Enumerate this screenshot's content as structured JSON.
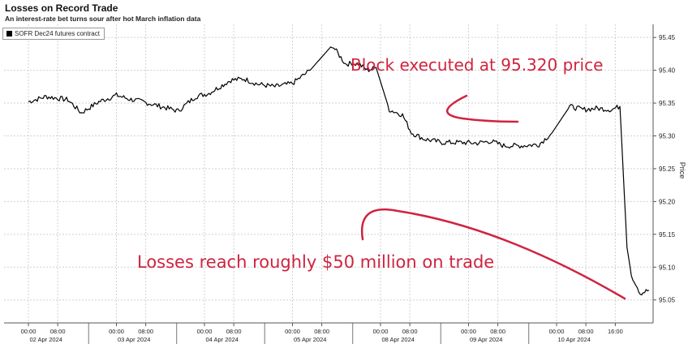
{
  "header": {
    "title": "Losses on Record Trade",
    "subtitle": "An interest-rate bet turns sour after hot March inflation data"
  },
  "chart_data": {
    "type": "line",
    "title": "Losses on Record Trade",
    "subtitle": "An interest-rate bet turns sour after hot March inflation data",
    "xlabel": "",
    "ylabel": "Price",
    "ylim": [
      95.015,
      95.47
    ],
    "yticks": [
      "95.05",
      "95.10",
      "95.15",
      "95.20",
      "95.25",
      "95.30",
      "95.35",
      "95.40",
      "95.45"
    ],
    "grid": true,
    "legend_position": "top-left",
    "series": [
      {
        "name": "SOFR Dec24 futures contract",
        "color": "#000000",
        "x": [
          0,
          0.2,
          0.45,
          0.6,
          0.8,
          1.0,
          1.15,
          1.3,
          1.5,
          1.7,
          1.9,
          2.05,
          2.3,
          2.45,
          2.6,
          2.8,
          3.0,
          3.2,
          3.45,
          3.6,
          3.75,
          3.85,
          3.95,
          4.1,
          4.25,
          4.35,
          4.5,
          4.7,
          4.9,
          5.1,
          5.25,
          5.4,
          5.6,
          5.8,
          5.95,
          6.15,
          6.3,
          6.45,
          6.55,
          6.62,
          6.72,
          6.8,
          6.85,
          6.9,
          6.95,
          7.05
        ],
        "values": [
          95.352,
          95.36,
          95.355,
          95.335,
          95.352,
          95.362,
          95.356,
          95.352,
          95.345,
          95.338,
          95.36,
          95.365,
          95.385,
          95.387,
          95.379,
          95.375,
          95.38,
          95.4,
          95.438,
          95.41,
          95.41,
          95.4,
          95.404,
          95.34,
          95.332,
          95.305,
          95.295,
          95.29,
          95.29,
          95.289,
          95.292,
          95.285,
          95.285,
          95.287,
          95.305,
          95.345,
          95.34,
          95.342,
          95.341,
          95.34,
          95.345,
          95.13,
          95.088,
          95.075,
          95.06,
          95.065
        ]
      }
    ],
    "x_tick_times": [
      "00:00",
      "08:00",
      "00:00",
      "08:00",
      "00:00",
      "08:00",
      "00:00",
      "08:00",
      "00:00",
      "08:00",
      "00:00",
      "08:00",
      "00:00",
      "08:00",
      "16:00"
    ],
    "x_tick_positions_days": [
      0.0,
      0.333,
      1.0,
      1.333,
      2.0,
      2.333,
      3.0,
      3.333,
      4.0,
      4.333,
      5.0,
      5.333,
      6.0,
      6.333,
      6.667
    ],
    "x_day_labels": [
      "02 Apr 2024",
      "03 Apr 2024",
      "04 Apr 2024",
      "05 Apr 2024",
      "08 Apr 2024",
      "09 Apr 2024",
      "10 Apr 2024"
    ],
    "annotations": [
      {
        "text": "Block executed at 95.320 price",
        "color": "#d0233f"
      },
      {
        "text": "Losses reach roughly $50 million on trade",
        "color": "#d0233f"
      }
    ]
  }
}
